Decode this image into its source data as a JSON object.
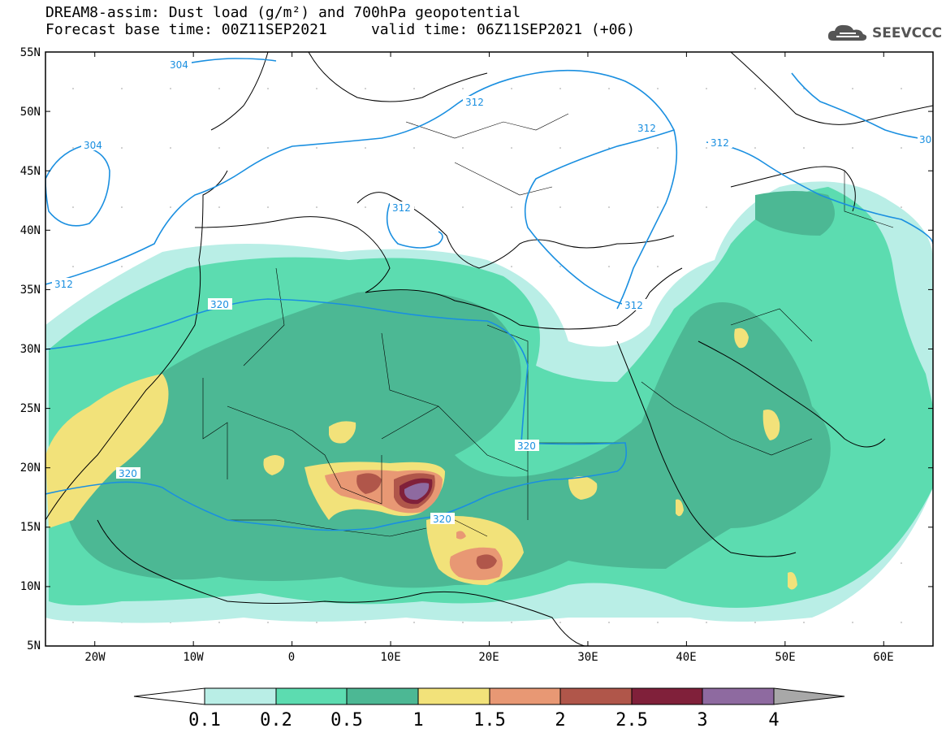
{
  "title": {
    "line1": "DREAM8-assim: Dust load (g/m²) and 700hPa geopotential",
    "line2": "Forecast base time: 00Z11SEP2021     valid time: 06Z11SEP2021 (+06)"
  },
  "logo": {
    "text": "SEEVCCC",
    "icon": "cloud-icon"
  },
  "map": {
    "lat_range": [
      5,
      55
    ],
    "lon_range": [
      -25,
      65
    ],
    "lat_ticks": [
      "55N",
      "50N",
      "45N",
      "40N",
      "35N",
      "30N",
      "25N",
      "20N",
      "15N",
      "10N",
      "5N"
    ],
    "lon_ticks": [
      "20W",
      "10W",
      "0",
      "10E",
      "20E",
      "30E",
      "40E",
      "50E",
      "60E"
    ],
    "contour_labels": [
      "304",
      "312",
      "312",
      "304",
      "312",
      "312",
      "312",
      "312",
      "320",
      "320",
      "320",
      "320",
      "30"
    ]
  },
  "colorbar": {
    "levels": [
      "0.1",
      "0.2",
      "0.5",
      "1",
      "1.5",
      "2",
      "2.5",
      "3",
      "4"
    ],
    "colors": [
      "#ffffff",
      "#b9eee6",
      "#5cdcb0",
      "#4cb894",
      "#f2e27a",
      "#e89874",
      "#b0564a",
      "#80203a",
      "#8e6aa0",
      "#a8a8a8"
    ]
  }
}
